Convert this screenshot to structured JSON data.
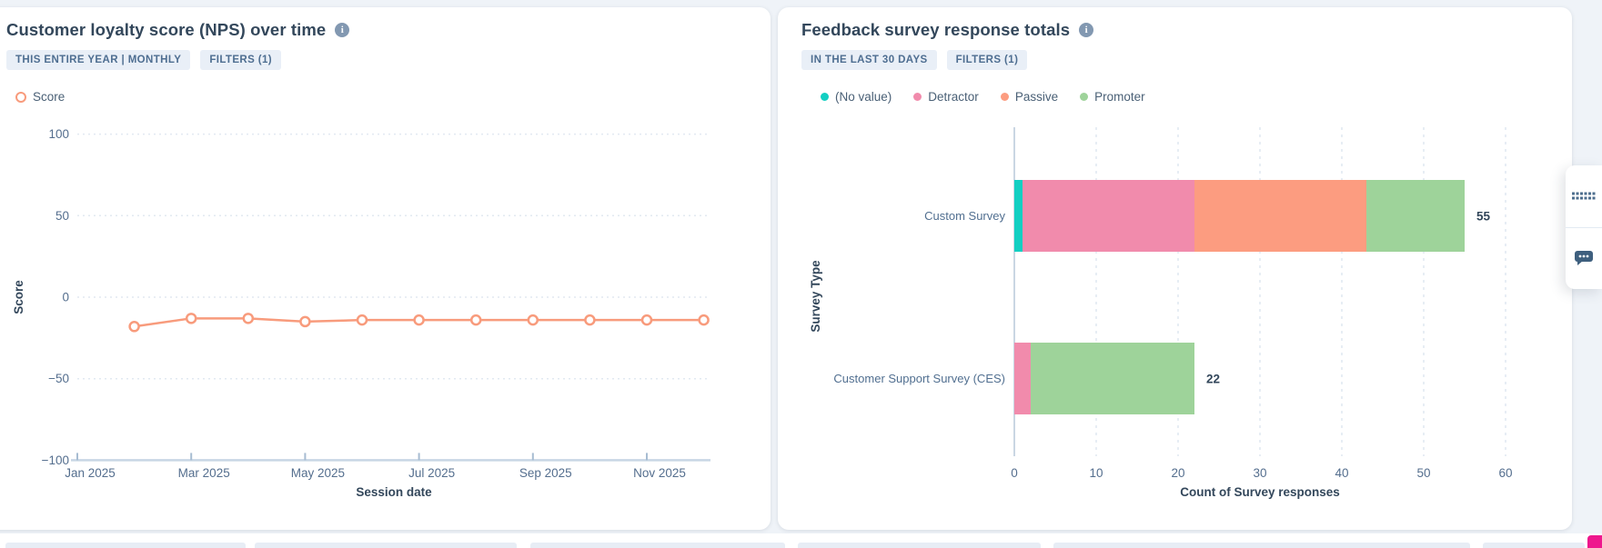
{
  "page": {
    "background": "#eff3f8"
  },
  "left_card": {
    "title": "Customer loyalty score (NPS) over time",
    "badges": [
      {
        "label": "THIS ENTIRE YEAR | MONTHLY"
      },
      {
        "label": "FILTERS (1)"
      }
    ],
    "legend": [
      {
        "label": "Score",
        "color": "#f89b7c",
        "swatch": "ring"
      }
    ]
  },
  "right_card": {
    "title": "Feedback survey response totals",
    "badges": [
      {
        "label": "IN THE LAST 30 DAYS"
      },
      {
        "label": "FILTERS (1)"
      }
    ],
    "legend": [
      {
        "label": "(No value)",
        "color": "#13cfc2",
        "swatch": "dot"
      },
      {
        "label": "Detractor",
        "color": "#f18bac",
        "swatch": "dot"
      },
      {
        "label": "Passive",
        "color": "#fc9c80",
        "swatch": "dot"
      },
      {
        "label": "Promoter",
        "color": "#9ed39a",
        "swatch": "dot"
      }
    ]
  },
  "chart_data": [
    {
      "type": "line",
      "title": "Customer loyalty score (NPS) over time",
      "xlabel": "Session date",
      "ylabel": "Score",
      "ylim": [
        -100,
        100
      ],
      "yticks": [
        100,
        50,
        0,
        -50,
        -100
      ],
      "x_domain": [
        "Jan 2025",
        "Feb 2025",
        "Mar 2025",
        "Apr 2025",
        "May 2025",
        "Jun 2025",
        "Jul 2025",
        "Aug 2025",
        "Sep 2025",
        "Oct 2025",
        "Nov 2025",
        "Dec 2025"
      ],
      "xticks": [
        "Jan 2025",
        "Mar 2025",
        "May 2025",
        "Jul 2025",
        "Sep 2025",
        "Nov 2025"
      ],
      "grid": "horizontal-dotted",
      "legend_position": "top-left",
      "series": [
        {
          "name": "Score",
          "color": "#f89b7c",
          "x": [
            "Feb 2025",
            "Mar 2025",
            "Apr 2025",
            "May 2025",
            "Jun 2025",
            "Jul 2025",
            "Aug 2025",
            "Sep 2025",
            "Oct 2025",
            "Nov 2025",
            "Dec 2025"
          ],
          "values": [
            -18,
            -13,
            -13,
            -15,
            -14,
            -14,
            -14,
            -14,
            -14,
            -14,
            -14
          ]
        }
      ]
    },
    {
      "type": "bar",
      "orientation": "horizontal",
      "stacked": true,
      "title": "Feedback survey response totals",
      "xlabel": "Count of Survey responses",
      "ylabel": "Survey Type",
      "xlim": [
        0,
        60
      ],
      "xticks": [
        0,
        10,
        20,
        30,
        40,
        50,
        60
      ],
      "grid": "vertical-dashed",
      "legend_position": "top-left",
      "categories": [
        "Custom Survey",
        "Customer Support Survey (CES)"
      ],
      "series": [
        {
          "name": "(No value)",
          "color": "#13cfc2",
          "values": [
            1,
            0
          ]
        },
        {
          "name": "Detractor",
          "color": "#f18bac",
          "values": [
            21,
            2
          ]
        },
        {
          "name": "Passive",
          "color": "#fc9c80",
          "values": [
            21,
            0
          ]
        },
        {
          "name": "Promoter",
          "color": "#9ed39a",
          "values": [
            12,
            20
          ]
        }
      ],
      "totals": [
        55,
        22
      ]
    }
  ],
  "side_panel": {
    "icons": [
      {
        "name": "grid-dots-icon",
        "color": "#4d6e8e"
      },
      {
        "name": "chat-bubble-icon",
        "color": "#3e5f7e"
      }
    ]
  },
  "chat_widget": {
    "color": "#ee178d"
  }
}
